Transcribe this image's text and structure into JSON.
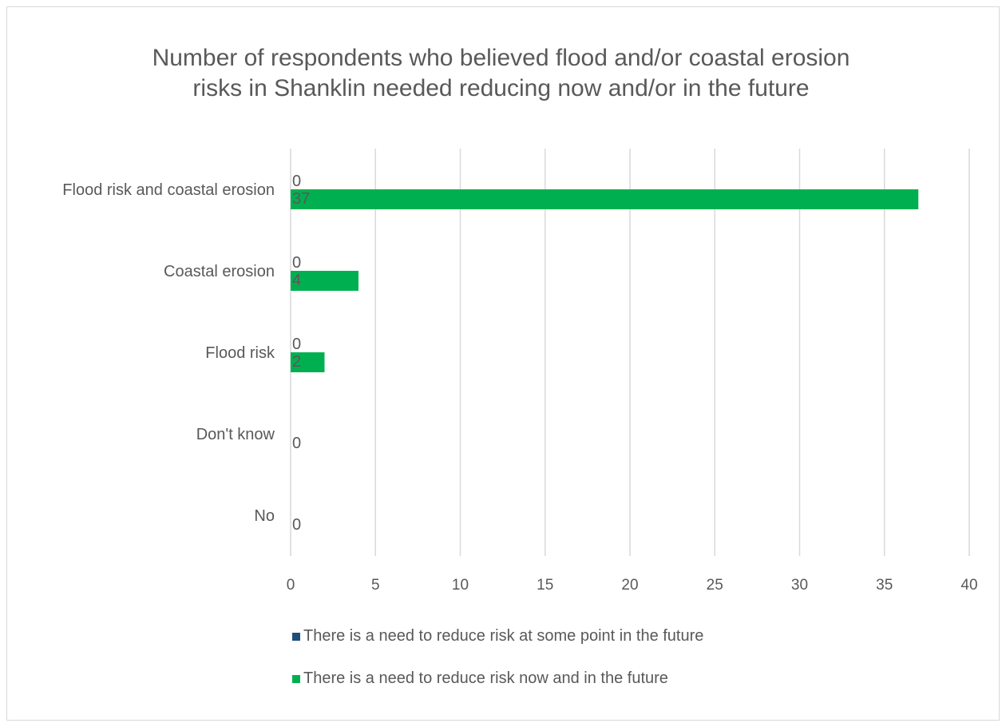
{
  "chart_data": {
    "type": "bar",
    "orientation": "horizontal",
    "title_lines": [
      "Number of respondents who believed flood and/or coastal erosion",
      "risks in Shanklin needed reducing now and/or in the future"
    ],
    "categories": [
      "Flood risk and coastal erosion",
      "Coastal erosion",
      "Flood risk",
      "Don't know",
      "No"
    ],
    "series": [
      {
        "name": "There is a need to reduce risk at some point in the future",
        "color": "#1f4e79",
        "values": [
          0,
          0,
          0,
          null,
          null
        ],
        "labels": [
          "0",
          "0",
          "0",
          "",
          ""
        ]
      },
      {
        "name": "There is a need to reduce risk now and in the future",
        "color": "#00b050",
        "values": [
          37,
          4,
          2,
          0,
          0
        ],
        "labels": [
          "37",
          "4",
          "2",
          "0",
          "0"
        ]
      }
    ],
    "xlim": [
      0,
      40
    ],
    "xticks": [
      0,
      5,
      10,
      15,
      20,
      25,
      30,
      35,
      40
    ],
    "grid": true,
    "legend_position": "bottom"
  }
}
